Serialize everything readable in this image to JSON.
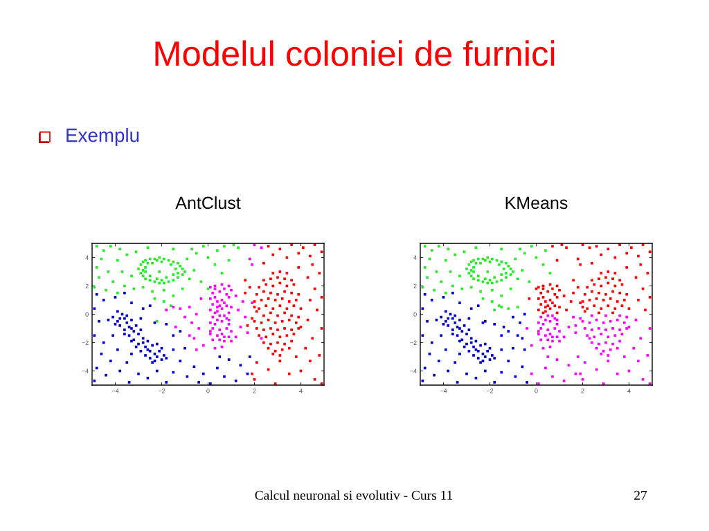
{
  "chart_data": [
    {
      "type": "scatter",
      "title": "AntClust",
      "xlim": [
        -5,
        5
      ],
      "ylim": [
        -5,
        5
      ],
      "xticks": [
        -4,
        -2,
        0,
        2,
        4
      ],
      "yticks": [
        -4,
        -2,
        0,
        2,
        4
      ],
      "marker": "square",
      "annotations": [
        "Modelul coloniei de furnici",
        "Exemplu",
        "Calcul neuronal si evolutiv - Curs 11",
        "27"
      ],
      "series": [
        {
          "color": "#22ee22",
          "x": [
            -3.0,
            -2.9,
            -2.8,
            -2.7,
            -2.5,
            -2.3,
            -2.1,
            -1.9,
            -1.7,
            -1.5,
            -1.3,
            -1.2,
            -1.1,
            -1.0,
            -1.1,
            -1.3,
            -1.5,
            -1.7,
            -1.9,
            -2.1,
            -2.3,
            -2.5,
            -2.7,
            -2.8,
            -2.9,
            -2.7,
            -2.6,
            -2.4,
            -2.0,
            -1.6,
            -1.4,
            -1.5,
            -1.8,
            -2.2,
            -2.5,
            -2.7,
            -2.8,
            -2.2,
            -1.3,
            -2.0,
            -2.1,
            -4.8,
            -4.5,
            -4.2,
            -3.8,
            -3.5,
            -3.9,
            -4.6,
            -4.8,
            -4.3,
            -3.7,
            -3.3,
            -4.7,
            -4.1,
            -3.6,
            -4.9,
            -4.4,
            -3.9,
            -3.2,
            -2.8,
            -2.4,
            -1.9,
            -1.5,
            -1.9,
            -1.6,
            -2.3,
            -1.1,
            -0.8,
            -0.6,
            -0.3,
            -0.9,
            -0.5,
            0.0,
            -0.2,
            0.4,
            0.3,
            0.6,
            -1.5,
            -2.6,
            -3.1,
            -0.7,
            0.7,
            1.1,
            0.9,
            1.3,
            0.0,
            -2.2
          ],
          "values": [
            3.2,
            3.5,
            3.7,
            3.8,
            3.9,
            3.9,
            4.0,
            3.9,
            3.8,
            3.7,
            3.6,
            3.4,
            3.2,
            3.0,
            2.8,
            2.6,
            2.4,
            2.3,
            2.2,
            2.2,
            2.3,
            2.4,
            2.5,
            2.7,
            2.9,
            3.3,
            3.6,
            3.6,
            3.7,
            3.5,
            3.2,
            2.8,
            2.6,
            2.5,
            2.7,
            3.0,
            3.1,
            3.8,
            2.9,
            2.4,
            3.0,
            4.8,
            4.5,
            4.8,
            4.6,
            4.2,
            3.8,
            3.9,
            3.3,
            3.0,
            3.0,
            2.7,
            2.6,
            2.3,
            2.0,
            1.9,
            1.7,
            1.5,
            1.8,
            1.9,
            1.6,
            1.7,
            1.3,
            0.9,
            0.6,
            1.1,
            1.8,
            2.5,
            3.1,
            2.3,
            3.9,
            4.3,
            4.0,
            4.8,
            4.5,
            3.5,
            2.9,
            4.6,
            4.7,
            4.4,
            4.6,
            4.8,
            4.9,
            3.8,
            4.7,
            1.8,
            -0.5
          ]
        },
        {
          "color": "#0000cc",
          "x": [
            -4.3,
            -4.1,
            -3.9,
            -3.7,
            -3.6,
            -3.8,
            -3.5,
            -3.4,
            -3.6,
            -3.3,
            -3.2,
            -3.4,
            -3.1,
            -3.0,
            -3.2,
            -2.9,
            -2.8,
            -3.0,
            -2.7,
            -2.9,
            -2.6,
            -2.5,
            -2.7,
            -2.4,
            -2.3,
            -2.5,
            -2.2,
            -2.1,
            -2.0,
            -1.9,
            -1.8,
            -2.3,
            -3.5,
            -3.8,
            -4.0,
            -3.3,
            -2.8,
            -2.6,
            -2.4,
            -3.1,
            -2.0,
            -3.6,
            -3.9,
            -2.2,
            -3.3,
            -4.8,
            -4.5,
            -4.0,
            -3.6,
            -3.3,
            -2.8,
            -2.5,
            -2.9,
            -2.3,
            -1.8,
            -1.5,
            -1.2,
            -1.5,
            -4.9,
            -4.7,
            -4.9,
            -4.5,
            -4.1,
            -4.6,
            -4.2,
            -4.8,
            -4.4,
            -4.9,
            -3.8,
            -3.5,
            -3.9,
            -3.3,
            -3.0,
            -3.4,
            -2.6,
            -2.2,
            -1.8,
            -1.5,
            -1.2,
            -0.9,
            -0.6,
            -0.4,
            -1.0,
            -0.2,
            0.1,
            0.4,
            0.7,
            0.9,
            1.2,
            1.4,
            1.7,
            1.8,
            0.5
          ],
          "values": [
            -0.4,
            -0.2,
            -0.5,
            0.0,
            -0.3,
            -0.8,
            -0.6,
            -0.9,
            -1.1,
            -0.4,
            -1.2,
            -1.5,
            -0.8,
            -1.4,
            -1.8,
            -1.1,
            -1.7,
            -2.1,
            -2.3,
            -2.6,
            -1.9,
            -2.6,
            -2.9,
            -2.2,
            -2.8,
            -3.1,
            -3.0,
            -2.6,
            -3.2,
            -2.9,
            -3.1,
            -3.3,
            -0.1,
            -0.3,
            -0.7,
            -1.9,
            -2.0,
            -2.5,
            -3.4,
            -2.3,
            -2.4,
            -1.4,
            0.2,
            -2.1,
            -1.0,
            1.4,
            1.0,
            1.2,
            1.5,
            0.8,
            0.4,
            0.6,
            -0.3,
            -0.6,
            -0.7,
            -1.5,
            -1.2,
            -2.5,
            0.4,
            -0.5,
            -1.5,
            -2.0,
            -1.5,
            -2.8,
            -3.3,
            -3.8,
            -4.3,
            -4.7,
            -4.0,
            -3.4,
            -2.5,
            -2.8,
            -4.2,
            -4.8,
            -4.5,
            -4.0,
            -4.8,
            -4.1,
            -3.3,
            -4.4,
            -3.7,
            -4.8,
            -2.4,
            -4.2,
            -4.9,
            -3.8,
            -4.4,
            -3.2,
            -4.7,
            -3.6,
            -4.2,
            -3.0,
            -3.0
          ]
        },
        {
          "color": "#ff00ff",
          "x": [
            0.1,
            0.3,
            0.6,
            0.9,
            0.2,
            0.5,
            0.8,
            1.0,
            0.1,
            0.3,
            0.6,
            0.9,
            0.2,
            0.5,
            0.7,
            1.0,
            0.1,
            0.4,
            0.6,
            0.9,
            0.3,
            0.7,
            0.4,
            0.8,
            0.3,
            0.4,
            0.2,
            0.5,
            0.8,
            0.1,
            0.3,
            0.6,
            0.9,
            0.2,
            0.5,
            0.8,
            1.0,
            0.1,
            0.4,
            0.6,
            0.9,
            0.2,
            0.5,
            0.7,
            1.0,
            0.7,
            0.4,
            0.1,
            0.7,
            0.9,
            -1.5,
            -1.2,
            -0.8,
            -1.8,
            -0.5,
            -1.0,
            -0.7,
            -1.4,
            -0.8,
            -0.5,
            -0.6,
            -0.4,
            -0.2,
            0.3,
            0.6,
            1.2,
            1.4,
            1.6,
            1.7,
            2.3,
            1.3,
            1.5,
            1.2,
            -0.3,
            1.9,
            2.0,
            2.3,
            1.8,
            1.9
          ],
          "values": [
            1.9,
            2.0,
            2.1,
            2.0,
            1.5,
            1.6,
            1.4,
            1.7,
            1.1,
            1.2,
            1.0,
            1.2,
            0.7,
            0.6,
            0.8,
            0.5,
            0.3,
            0.2,
            0.4,
            0.1,
            1.8,
            1.8,
            0.9,
            0.6,
            0.1,
            0.5,
            -0.2,
            -0.1,
            -0.3,
            -0.6,
            -0.7,
            -0.5,
            -0.7,
            -1.0,
            -1.1,
            -1.0,
            -1.2,
            -1.4,
            -1.5,
            -1.4,
            -1.6,
            -1.8,
            -1.8,
            -1.9,
            -1.9,
            -0.1,
            -0.4,
            -1.2,
            -1.6,
            -0.4,
            0.5,
            0.4,
            0.5,
            0.3,
            0.0,
            -0.2,
            -0.6,
            -0.9,
            -1.5,
            -2.5,
            -1.7,
            -1.0,
            -2.2,
            -2.4,
            -2.3,
            -1.6,
            -0.9,
            -0.2,
            -1.3,
            -1.7,
            0.3,
            0.9,
            1.3,
            1.1,
            0.8,
            4.9,
            4.7,
            3.9,
            3.5
          ]
        },
        {
          "color": "#ff0000",
          "x": [
            2.8,
            3.1,
            3.4,
            2.4,
            2.7,
            3.0,
            3.3,
            3.6,
            2.2,
            2.5,
            2.8,
            3.1,
            3.4,
            3.7,
            2.1,
            2.4,
            2.7,
            3.0,
            3.3,
            3.6,
            3.9,
            2.0,
            2.3,
            2.6,
            2.9,
            3.2,
            3.5,
            3.8,
            2.0,
            2.2,
            2.5,
            2.8,
            3.1,
            3.4,
            3.7,
            4.0,
            3.3,
            2.7,
            2.1,
            2.4,
            3.0,
            3.6,
            3.9,
            2.0,
            2.3,
            2.6,
            2.9,
            3.2,
            3.5,
            3.8,
            4.0,
            2.1,
            2.4,
            2.7,
            3.0,
            3.3,
            3.6,
            3.9,
            2.2,
            2.5,
            2.8,
            3.1,
            3.4,
            3.7,
            2.4,
            2.7,
            3.0,
            3.3,
            3.6,
            2.6,
            2.9,
            3.2,
            3.5,
            2.8,
            3.1,
            2.6,
            3.1,
            3.6,
            4.1,
            4.6,
            2.8,
            3.4,
            3.9,
            4.4,
            4.9,
            2.4,
            3.9,
            4.5,
            4.8,
            4.3,
            1.6,
            1.8,
            4.6,
            4.9,
            4.4,
            1.6,
            4.7,
            4.3,
            4.9,
            4.5,
            1.9,
            1.7,
            4.2,
            4.8,
            4.4,
            2.1,
            2.6,
            3.1,
            3.5,
            4.0,
            4.6,
            4.9,
            2.0,
            2.9,
            3.8,
            1.9
          ],
          "values": [
            2.9,
            3.0,
            2.9,
            2.4,
            2.5,
            2.6,
            2.5,
            2.4,
            1.9,
            2.1,
            2.0,
            2.2,
            2.0,
            2.1,
            1.4,
            1.6,
            1.5,
            1.4,
            1.6,
            1.5,
            1.4,
            0.9,
            1.0,
            1.1,
            1.0,
            1.1,
            0.9,
            1.0,
            0.5,
            0.4,
            0.6,
            0.4,
            0.6,
            0.4,
            0.6,
            0.4,
            0.1,
            0.1,
            0.2,
            -0.1,
            -0.1,
            -0.1,
            -0.2,
            -0.5,
            -0.6,
            -0.4,
            -0.6,
            -0.5,
            -0.4,
            -0.6,
            -0.9,
            -1.0,
            -1.1,
            -1.0,
            -1.1,
            -1.0,
            -1.1,
            -1.0,
            -1.5,
            -1.6,
            -1.4,
            -1.6,
            -1.5,
            -1.4,
            -2.0,
            -2.1,
            -2.0,
            -2.1,
            -1.9,
            -2.4,
            -2.6,
            -2.5,
            -2.4,
            -2.8,
            -2.9,
            4.8,
            4.6,
            4.9,
            4.7,
            4.9,
            4.2,
            4.0,
            4.3,
            4.1,
            4.4,
            3.6,
            3.3,
            3.5,
            2.9,
            2.6,
            2.4,
            1.9,
            1.8,
            1.2,
            1.0,
            1.5,
            0.3,
            -0.4,
            -1.0,
            -1.7,
            -0.3,
            -0.8,
            -2.4,
            -2.9,
            -3.3,
            -3.4,
            -3.9,
            -3.3,
            -4.2,
            -4.0,
            -4.6,
            -4.9,
            -4.6,
            -4.9,
            -3.0,
            -4.2
          ]
        }
      ]
    },
    {
      "type": "scatter",
      "title": "KMeans",
      "xlim": [
        -5,
        5
      ],
      "ylim": [
        -5,
        5
      ],
      "xticks": [
        -4,
        -2,
        0,
        2,
        4
      ],
      "yticks": [
        -4,
        -2,
        0,
        2,
        4
      ],
      "marker": "square",
      "series": [
        {
          "color": "#22ee22",
          "x": [
            -3.0,
            -2.9,
            -2.8,
            -2.7,
            -2.5,
            -2.3,
            -2.1,
            -1.9,
            -1.7,
            -1.5,
            -1.3,
            -1.2,
            -1.1,
            -1.0,
            -1.1,
            -1.3,
            -1.5,
            -1.7,
            -1.9,
            -2.1,
            -2.3,
            -2.5,
            -2.7,
            -2.8,
            -2.9,
            -2.7,
            -2.6,
            -2.4,
            -2.0,
            -1.6,
            -1.4,
            -1.5,
            -1.8,
            -2.2,
            -2.5,
            -2.7,
            -2.8,
            -2.2,
            -1.3,
            -2.0,
            -2.1,
            -4.8,
            -4.5,
            -4.2,
            -3.8,
            -3.5,
            -3.9,
            -4.6,
            -4.8,
            -4.3,
            -3.7,
            -3.3,
            -4.7,
            -4.1,
            -3.6,
            -4.9,
            -4.4,
            -3.9,
            -3.2,
            -2.8,
            -2.4,
            -1.9,
            -1.5,
            -1.9,
            -1.6,
            -2.3,
            -1.1,
            -0.8,
            -0.6,
            -0.3,
            -0.9,
            -0.5,
            0.0,
            -0.2,
            0.4,
            0.3,
            0.6,
            -1.5,
            -2.6,
            -3.1,
            -0.7,
            -1.5,
            -1.2,
            -0.8,
            -1.8
          ],
          "values": [
            3.2,
            3.5,
            3.7,
            3.8,
            3.9,
            3.9,
            4.0,
            3.9,
            3.8,
            3.7,
            3.6,
            3.4,
            3.2,
            3.0,
            2.8,
            2.6,
            2.4,
            2.3,
            2.2,
            2.2,
            2.3,
            2.4,
            2.5,
            2.7,
            2.9,
            3.3,
            3.6,
            3.6,
            3.7,
            3.5,
            3.2,
            2.8,
            2.6,
            2.5,
            2.7,
            3.0,
            3.1,
            3.8,
            2.9,
            2.4,
            3.0,
            4.8,
            4.5,
            4.8,
            4.6,
            4.2,
            3.8,
            3.9,
            3.3,
            3.0,
            3.0,
            2.7,
            2.6,
            2.3,
            2.0,
            1.9,
            1.7,
            1.5,
            1.8,
            1.9,
            1.6,
            1.7,
            1.3,
            0.9,
            0.6,
            1.1,
            1.8,
            2.5,
            3.1,
            2.3,
            3.9,
            4.3,
            4.0,
            4.8,
            4.5,
            3.5,
            2.9,
            4.6,
            4.7,
            4.4,
            4.6,
            0.5,
            0.4,
            0.5,
            0.3
          ]
        },
        {
          "color": "#0000cc",
          "x": [
            -4.3,
            -4.1,
            -3.9,
            -3.7,
            -3.6,
            -3.8,
            -3.5,
            -3.4,
            -3.6,
            -3.3,
            -3.2,
            -3.4,
            -3.1,
            -3.0,
            -3.2,
            -2.9,
            -2.8,
            -3.0,
            -2.7,
            -2.9,
            -2.6,
            -2.5,
            -2.7,
            -2.4,
            -2.3,
            -2.5,
            -2.2,
            -2.1,
            -2.0,
            -1.9,
            -1.8,
            -2.3,
            -3.5,
            -3.8,
            -4.0,
            -3.3,
            -2.8,
            -2.6,
            -2.4,
            -3.1,
            -2.0,
            -3.6,
            -3.9,
            -2.2,
            -3.3,
            -4.8,
            -4.5,
            -4.0,
            -3.6,
            -3.3,
            -2.8,
            -2.5,
            -2.9,
            -2.3,
            -1.8,
            -1.5,
            -1.2,
            -1.5,
            -4.9,
            -4.7,
            -4.9,
            -4.5,
            -4.1,
            -4.6,
            -4.2,
            -4.8,
            -4.4,
            -4.9,
            -3.8,
            -3.5,
            -3.9,
            -3.3,
            -3.0,
            -3.4,
            -2.6,
            -2.2,
            -1.8,
            -1.5,
            -1.2,
            -0.9,
            -0.6,
            -0.4,
            -1.0,
            -2.2,
            -0.5,
            -1.0,
            -0.7,
            -1.4,
            -0.8,
            -0.5,
            -0.6
          ],
          "values": [
            -0.4,
            -0.2,
            -0.5,
            0.0,
            -0.3,
            -0.8,
            -0.6,
            -0.9,
            -1.1,
            -0.4,
            -1.2,
            -1.5,
            -0.8,
            -1.4,
            -1.8,
            -1.1,
            -1.7,
            -2.1,
            -2.3,
            -2.6,
            -1.9,
            -2.6,
            -2.9,
            -2.2,
            -2.8,
            -3.1,
            -3.0,
            -2.6,
            -3.2,
            -2.9,
            -3.1,
            -3.3,
            -0.1,
            -0.3,
            -0.7,
            -1.9,
            -2.0,
            -2.5,
            -3.4,
            -2.3,
            -2.4,
            -1.4,
            0.2,
            -2.1,
            -1.0,
            1.4,
            1.0,
            1.2,
            1.5,
            0.8,
            0.4,
            0.6,
            -0.3,
            -0.6,
            -0.7,
            -1.5,
            -1.2,
            -2.5,
            0.4,
            -0.5,
            -1.5,
            -2.0,
            -1.5,
            -2.8,
            -3.3,
            -3.8,
            -4.3,
            -4.7,
            -4.0,
            -3.4,
            -2.5,
            -2.8,
            -4.2,
            -4.8,
            -4.5,
            -4.0,
            -4.8,
            -4.1,
            -3.3,
            -4.4,
            -3.7,
            -4.8,
            -2.4,
            -0.5,
            0.0,
            -0.2,
            -0.6,
            -0.9,
            -1.5,
            -2.5,
            -1.7
          ]
        },
        {
          "color": "#ff00ff",
          "x": [
            0.2,
            0.5,
            0.8,
            0.1,
            0.3,
            0.6,
            0.9,
            0.2,
            0.5,
            0.8,
            1.0,
            0.1,
            0.4,
            0.6,
            0.9,
            0.2,
            0.5,
            0.7,
            1.0,
            0.7,
            0.4,
            0.1,
            0.7,
            0.9,
            2.4,
            3.0,
            3.6,
            3.9,
            2.0,
            2.3,
            2.6,
            2.9,
            3.2,
            3.5,
            3.8,
            4.0,
            2.1,
            2.4,
            2.7,
            3.0,
            3.3,
            3.6,
            3.9,
            2.2,
            2.5,
            2.8,
            3.1,
            3.4,
            3.7,
            2.4,
            2.7,
            3.0,
            3.3,
            3.6,
            2.6,
            2.9,
            3.2,
            3.5,
            2.8,
            3.1,
            4.3,
            4.9,
            4.5,
            1.9,
            1.7,
            4.2,
            4.8,
            4.4,
            2.1,
            2.6,
            3.1,
            3.5,
            4.0,
            4.6,
            4.9,
            2.0,
            2.9,
            3.8,
            1.9,
            -0.2,
            0.1,
            0.4,
            0.7,
            0.9,
            1.2,
            1.4,
            1.7,
            1.8,
            0.5,
            -0.4,
            -0.2,
            0.3,
            0.6,
            1.2,
            1.4,
            1.6,
            1.7,
            2.3
          ],
          "values": [
            -0.2,
            -0.1,
            -0.3,
            -0.6,
            -0.7,
            -0.5,
            -0.7,
            -1.0,
            -1.1,
            -1.0,
            -1.2,
            -1.4,
            -1.5,
            -1.4,
            -1.6,
            -1.8,
            -1.8,
            -1.9,
            -1.9,
            -0.1,
            -0.4,
            -1.2,
            -1.6,
            -0.4,
            -0.1,
            -0.1,
            -0.1,
            -0.2,
            -0.5,
            -0.6,
            -0.4,
            -0.6,
            -0.5,
            -0.4,
            -0.6,
            -0.9,
            -1.0,
            -1.1,
            -1.0,
            -1.1,
            -1.0,
            -1.1,
            -1.0,
            -1.5,
            -1.6,
            -1.4,
            -1.6,
            -1.5,
            -1.4,
            -2.0,
            -2.1,
            -2.0,
            -2.1,
            -1.9,
            -2.4,
            -2.6,
            -2.5,
            -2.4,
            -2.8,
            -2.9,
            -0.4,
            -1.0,
            -1.7,
            -0.3,
            -0.8,
            -2.4,
            -2.9,
            -3.3,
            -3.4,
            -3.9,
            -3.3,
            -4.2,
            -4.0,
            -4.6,
            -4.9,
            -4.6,
            -4.9,
            -3.0,
            -4.2,
            -4.2,
            -4.9,
            -3.8,
            -4.4,
            -3.2,
            -4.7,
            -3.6,
            -4.2,
            -3.0,
            -3.0,
            -1.0,
            -2.2,
            -2.4,
            -2.3,
            -1.6,
            -0.9,
            -0.2,
            -1.3,
            -1.7
          ]
        },
        {
          "color": "#ff0000",
          "x": [
            0.1,
            0.3,
            0.6,
            0.9,
            0.2,
            0.5,
            0.8,
            1.0,
            0.1,
            0.3,
            0.6,
            0.9,
            0.2,
            0.5,
            0.7,
            1.0,
            0.1,
            0.4,
            0.6,
            0.9,
            0.3,
            0.7,
            0.4,
            0.8,
            0.3,
            0.4,
            2.8,
            3.1,
            3.4,
            2.4,
            2.7,
            3.0,
            3.3,
            3.6,
            2.2,
            2.5,
            2.8,
            3.1,
            3.4,
            3.7,
            2.1,
            2.4,
            2.7,
            3.0,
            3.3,
            3.6,
            3.9,
            2.0,
            2.3,
            2.6,
            2.9,
            3.2,
            3.5,
            3.8,
            2.0,
            2.2,
            2.5,
            2.8,
            3.1,
            3.4,
            3.7,
            4.0,
            3.3,
            2.7,
            2.1,
            2.6,
            3.1,
            3.6,
            4.1,
            4.6,
            2.8,
            3.4,
            3.9,
            4.4,
            4.9,
            2.4,
            3.9,
            4.5,
            4.8,
            4.3,
            1.6,
            1.8,
            4.6,
            4.9,
            4.4,
            1.6,
            4.7,
            0.7,
            1.1,
            0.9,
            1.3,
            0.0,
            1.3,
            1.5,
            1.2,
            -0.3,
            1.9,
            2.0,
            2.3,
            1.8,
            1.9
          ],
          "values": [
            1.9,
            2.0,
            2.1,
            2.0,
            1.5,
            1.6,
            1.4,
            1.7,
            1.1,
            1.2,
            1.0,
            1.2,
            0.7,
            0.6,
            0.8,
            0.5,
            0.3,
            0.2,
            0.4,
            0.1,
            1.8,
            1.8,
            0.9,
            0.6,
            0.1,
            0.5,
            2.9,
            3.0,
            2.9,
            2.4,
            2.5,
            2.6,
            2.5,
            2.4,
            1.9,
            2.1,
            2.0,
            2.2,
            2.0,
            2.1,
            1.4,
            1.6,
            1.5,
            1.4,
            1.6,
            1.5,
            1.4,
            0.9,
            1.0,
            1.1,
            1.0,
            1.1,
            0.9,
            1.0,
            0.5,
            0.4,
            0.6,
            0.4,
            0.6,
            0.4,
            0.6,
            0.4,
            0.1,
            0.1,
            0.2,
            4.8,
            4.6,
            4.9,
            4.7,
            4.9,
            4.2,
            4.0,
            4.3,
            4.1,
            4.4,
            3.6,
            3.3,
            3.5,
            2.9,
            2.6,
            2.4,
            1.9,
            1.8,
            1.2,
            1.0,
            1.5,
            0.3,
            4.8,
            4.9,
            3.8,
            4.7,
            1.8,
            0.3,
            0.9,
            1.3,
            1.1,
            0.8,
            4.9,
            4.7,
            3.9,
            3.5
          ]
        }
      ]
    }
  ]
}
